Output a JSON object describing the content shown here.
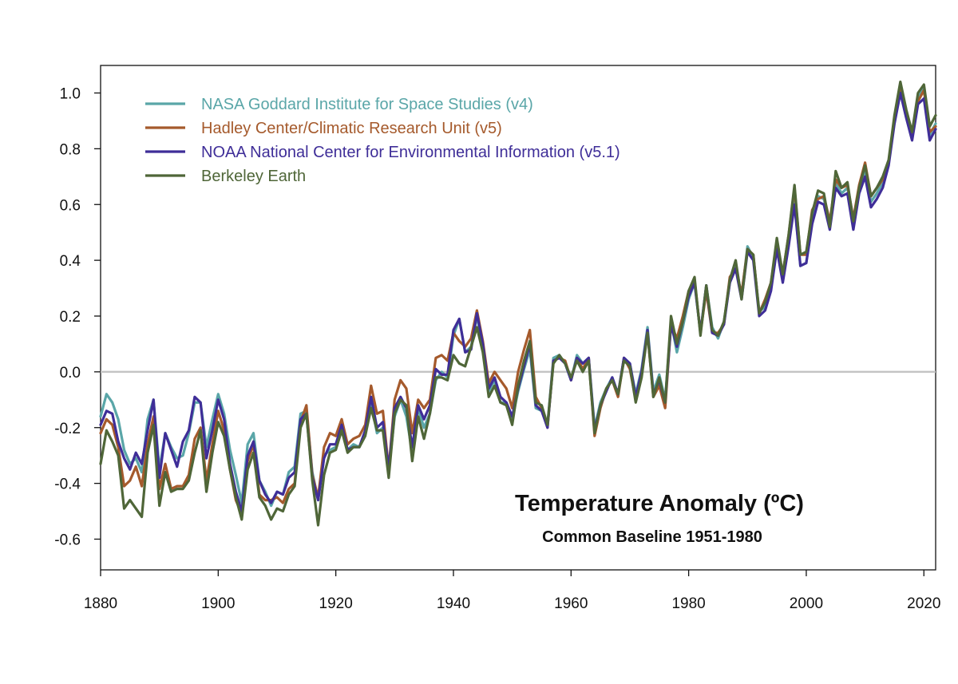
{
  "chart_data": {
    "type": "line",
    "title": "Temperature Anomaly (ºC)",
    "subtitle": "Common Baseline 1951-1980",
    "xlabel": "",
    "ylabel": "",
    "xlim": [
      1880,
      2022
    ],
    "ylim": [
      -0.7,
      1.1
    ],
    "x_ticks": [
      1880,
      1900,
      1920,
      1940,
      1960,
      1980,
      2000,
      2020
    ],
    "x_tick_labels": [
      "1880",
      "1900",
      "1920",
      "1940",
      "1960",
      "1980",
      "2000",
      "2020"
    ],
    "y_ticks": [
      -0.6,
      -0.4,
      -0.2,
      0.0,
      0.2,
      0.4,
      0.6,
      0.8,
      1.0
    ],
    "y_tick_labels": [
      "-0.6",
      "-0.4",
      "-0.2",
      "0.0",
      "0.2",
      "0.4",
      "0.6",
      "0.8",
      "1.0"
    ],
    "zero_line": true,
    "grid": false,
    "legend_position": "top-left",
    "x": [
      1880,
      1881,
      1882,
      1883,
      1884,
      1885,
      1886,
      1887,
      1888,
      1889,
      1890,
      1891,
      1892,
      1893,
      1894,
      1895,
      1896,
      1897,
      1898,
      1899,
      1900,
      1901,
      1902,
      1903,
      1904,
      1905,
      1906,
      1907,
      1908,
      1909,
      1910,
      1911,
      1912,
      1913,
      1914,
      1915,
      1916,
      1917,
      1918,
      1919,
      1920,
      1921,
      1922,
      1923,
      1924,
      1925,
      1926,
      1927,
      1928,
      1929,
      1930,
      1931,
      1932,
      1933,
      1934,
      1935,
      1936,
      1937,
      1938,
      1939,
      1940,
      1941,
      1942,
      1943,
      1944,
      1945,
      1946,
      1947,
      1948,
      1949,
      1950,
      1951,
      1952,
      1953,
      1954,
      1955,
      1956,
      1957,
      1958,
      1959,
      1960,
      1961,
      1962,
      1963,
      1964,
      1965,
      1966,
      1967,
      1968,
      1969,
      1970,
      1971,
      1972,
      1973,
      1974,
      1975,
      1976,
      1977,
      1978,
      1979,
      1980,
      1981,
      1982,
      1983,
      1984,
      1985,
      1986,
      1987,
      1988,
      1989,
      1990,
      1991,
      1992,
      1993,
      1994,
      1995,
      1996,
      1997,
      1998,
      1999,
      2000,
      2001,
      2002,
      2003,
      2004,
      2005,
      2006,
      2007,
      2008,
      2009,
      2010,
      2011,
      2012,
      2013,
      2014,
      2015,
      2016,
      2017,
      2018,
      2019,
      2020,
      2021,
      2022
    ],
    "series": [
      {
        "name": "NASA Goddard Institute for Space Studies (v4)",
        "color": "#5aa6a8",
        "values": [
          -0.16,
          -0.08,
          -0.11,
          -0.17,
          -0.28,
          -0.33,
          -0.31,
          -0.36,
          -0.17,
          -0.1,
          -0.35,
          -0.22,
          -0.27,
          -0.31,
          -0.3,
          -0.22,
          -0.11,
          -0.11,
          -0.27,
          -0.17,
          -0.08,
          -0.15,
          -0.28,
          -0.37,
          -0.47,
          -0.26,
          -0.22,
          -0.39,
          -0.43,
          -0.48,
          -0.43,
          -0.44,
          -0.36,
          -0.34,
          -0.15,
          -0.14,
          -0.36,
          -0.46,
          -0.3,
          -0.28,
          -0.27,
          -0.19,
          -0.28,
          -0.26,
          -0.27,
          -0.22,
          -0.11,
          -0.22,
          -0.2,
          -0.36,
          -0.16,
          -0.1,
          -0.16,
          -0.29,
          -0.13,
          -0.2,
          -0.15,
          -0.03,
          0.0,
          -0.02,
          0.13,
          0.19,
          0.07,
          0.09,
          0.2,
          0.09,
          -0.07,
          -0.03,
          -0.11,
          -0.11,
          -0.17,
          -0.07,
          0.01,
          0.08,
          -0.13,
          -0.14,
          -0.19,
          0.05,
          0.06,
          0.03,
          -0.03,
          0.06,
          0.03,
          0.05,
          -0.2,
          -0.11,
          -0.06,
          -0.02,
          -0.08,
          0.05,
          0.03,
          -0.08,
          0.01,
          0.16,
          -0.07,
          -0.01,
          -0.1,
          0.18,
          0.07,
          0.16,
          0.26,
          0.32,
          0.14,
          0.31,
          0.16,
          0.12,
          0.18,
          0.32,
          0.39,
          0.27,
          0.45,
          0.41,
          0.22,
          0.23,
          0.31,
          0.44,
          0.33,
          0.46,
          0.61,
          0.38,
          0.39,
          0.54,
          0.63,
          0.62,
          0.53,
          0.68,
          0.64,
          0.66,
          0.54,
          0.65,
          0.72,
          0.61,
          0.64,
          0.68,
          0.75,
          0.9,
          1.01,
          0.92,
          0.85,
          0.98,
          1.02,
          0.85,
          0.89
        ]
      },
      {
        "name": "Hadley Center/Climatic Research Unit (v5)",
        "color": "#a55a2c",
        "values": [
          -0.22,
          -0.17,
          -0.19,
          -0.27,
          -0.41,
          -0.39,
          -0.34,
          -0.41,
          -0.26,
          -0.16,
          -0.42,
          -0.33,
          -0.42,
          -0.41,
          -0.41,
          -0.37,
          -0.24,
          -0.2,
          -0.39,
          -0.26,
          -0.14,
          -0.21,
          -0.35,
          -0.46,
          -0.51,
          -0.32,
          -0.26,
          -0.44,
          -0.46,
          -0.46,
          -0.45,
          -0.47,
          -0.42,
          -0.4,
          -0.18,
          -0.12,
          -0.37,
          -0.45,
          -0.27,
          -0.22,
          -0.23,
          -0.17,
          -0.26,
          -0.24,
          -0.23,
          -0.19,
          -0.05,
          -0.15,
          -0.14,
          -0.35,
          -0.1,
          -0.03,
          -0.06,
          -0.22,
          -0.1,
          -0.13,
          -0.1,
          0.05,
          0.06,
          0.04,
          0.14,
          0.11,
          0.09,
          0.12,
          0.22,
          0.11,
          -0.04,
          0.0,
          -0.03,
          -0.06,
          -0.13,
          0.0,
          0.08,
          0.15,
          -0.09,
          -0.13,
          -0.2,
          0.04,
          0.05,
          0.04,
          -0.03,
          0.05,
          0.01,
          0.05,
          -0.23,
          -0.13,
          -0.06,
          -0.03,
          -0.09,
          0.05,
          0.01,
          -0.1,
          0.0,
          0.14,
          -0.09,
          -0.05,
          -0.13,
          0.17,
          0.12,
          0.2,
          0.29,
          0.33,
          0.14,
          0.29,
          0.14,
          0.14,
          0.17,
          0.34,
          0.37,
          0.28,
          0.44,
          0.42,
          0.21,
          0.26,
          0.32,
          0.46,
          0.35,
          0.49,
          0.66,
          0.42,
          0.42,
          0.58,
          0.62,
          0.63,
          0.54,
          0.69,
          0.66,
          0.67,
          0.55,
          0.67,
          0.75,
          0.63,
          0.66,
          0.69,
          0.75,
          0.91,
          1.01,
          0.93,
          0.84,
          0.97,
          1.01,
          0.86,
          0.88
        ]
      },
      {
        "name": "NOAA National Center for Environmental Information (v5.1)",
        "color": "#3f2e98",
        "values": [
          -0.19,
          -0.14,
          -0.15,
          -0.25,
          -0.31,
          -0.35,
          -0.29,
          -0.33,
          -0.21,
          -0.1,
          -0.38,
          -0.22,
          -0.28,
          -0.34,
          -0.25,
          -0.21,
          -0.09,
          -0.11,
          -0.31,
          -0.21,
          -0.1,
          -0.17,
          -0.33,
          -0.43,
          -0.5,
          -0.3,
          -0.25,
          -0.39,
          -0.44,
          -0.47,
          -0.43,
          -0.44,
          -0.38,
          -0.36,
          -0.17,
          -0.15,
          -0.38,
          -0.46,
          -0.31,
          -0.26,
          -0.26,
          -0.19,
          -0.28,
          -0.27,
          -0.27,
          -0.21,
          -0.09,
          -0.2,
          -0.18,
          -0.35,
          -0.13,
          -0.09,
          -0.13,
          -0.27,
          -0.12,
          -0.17,
          -0.12,
          0.01,
          -0.01,
          -0.01,
          0.15,
          0.19,
          0.07,
          0.08,
          0.21,
          0.1,
          -0.06,
          -0.02,
          -0.09,
          -0.11,
          -0.16,
          -0.06,
          0.02,
          0.1,
          -0.12,
          -0.14,
          -0.2,
          0.04,
          0.05,
          0.03,
          -0.03,
          0.05,
          0.03,
          0.05,
          -0.21,
          -0.12,
          -0.07,
          -0.02,
          -0.08,
          0.05,
          0.03,
          -0.09,
          0.0,
          0.15,
          -0.08,
          -0.03,
          -0.11,
          0.17,
          0.09,
          0.18,
          0.27,
          0.32,
          0.14,
          0.31,
          0.14,
          0.13,
          0.17,
          0.32,
          0.37,
          0.26,
          0.43,
          0.4,
          0.2,
          0.22,
          0.29,
          0.44,
          0.32,
          0.45,
          0.6,
          0.38,
          0.39,
          0.53,
          0.61,
          0.6,
          0.51,
          0.66,
          0.63,
          0.64,
          0.51,
          0.64,
          0.7,
          0.59,
          0.62,
          0.66,
          0.74,
          0.89,
          1.0,
          0.91,
          0.83,
          0.96,
          0.98,
          0.83,
          0.87
        ]
      },
      {
        "name": "Berkeley Earth",
        "color": "#4f6638",
        "values": [
          -0.33,
          -0.21,
          -0.25,
          -0.3,
          -0.49,
          -0.46,
          -0.49,
          -0.52,
          -0.29,
          -0.19,
          -0.48,
          -0.36,
          -0.43,
          -0.42,
          -0.42,
          -0.39,
          -0.29,
          -0.21,
          -0.43,
          -0.29,
          -0.18,
          -0.23,
          -0.35,
          -0.45,
          -0.53,
          -0.35,
          -0.29,
          -0.45,
          -0.48,
          -0.53,
          -0.49,
          -0.5,
          -0.44,
          -0.41,
          -0.2,
          -0.15,
          -0.39,
          -0.55,
          -0.37,
          -0.29,
          -0.28,
          -0.21,
          -0.29,
          -0.27,
          -0.27,
          -0.23,
          -0.13,
          -0.21,
          -0.21,
          -0.38,
          -0.15,
          -0.1,
          -0.12,
          -0.32,
          -0.16,
          -0.24,
          -0.15,
          -0.02,
          -0.02,
          -0.03,
          0.06,
          0.03,
          0.02,
          0.09,
          0.16,
          0.07,
          -0.09,
          -0.05,
          -0.11,
          -0.12,
          -0.19,
          -0.05,
          0.04,
          0.11,
          -0.11,
          -0.12,
          -0.19,
          0.03,
          0.06,
          0.03,
          -0.02,
          0.04,
          0.0,
          0.04,
          -0.22,
          -0.12,
          -0.06,
          -0.03,
          -0.08,
          0.04,
          0.02,
          -0.11,
          -0.02,
          0.14,
          -0.09,
          -0.02,
          -0.11,
          0.2,
          0.1,
          0.18,
          0.29,
          0.34,
          0.13,
          0.31,
          0.15,
          0.13,
          0.18,
          0.33,
          0.4,
          0.26,
          0.44,
          0.42,
          0.21,
          0.25,
          0.32,
          0.48,
          0.35,
          0.49,
          0.67,
          0.42,
          0.43,
          0.57,
          0.65,
          0.64,
          0.52,
          0.72,
          0.66,
          0.68,
          0.54,
          0.66,
          0.74,
          0.63,
          0.66,
          0.7,
          0.76,
          0.92,
          1.04,
          0.94,
          0.86,
          1.0,
          1.03,
          0.88,
          0.92
        ]
      }
    ]
  }
}
